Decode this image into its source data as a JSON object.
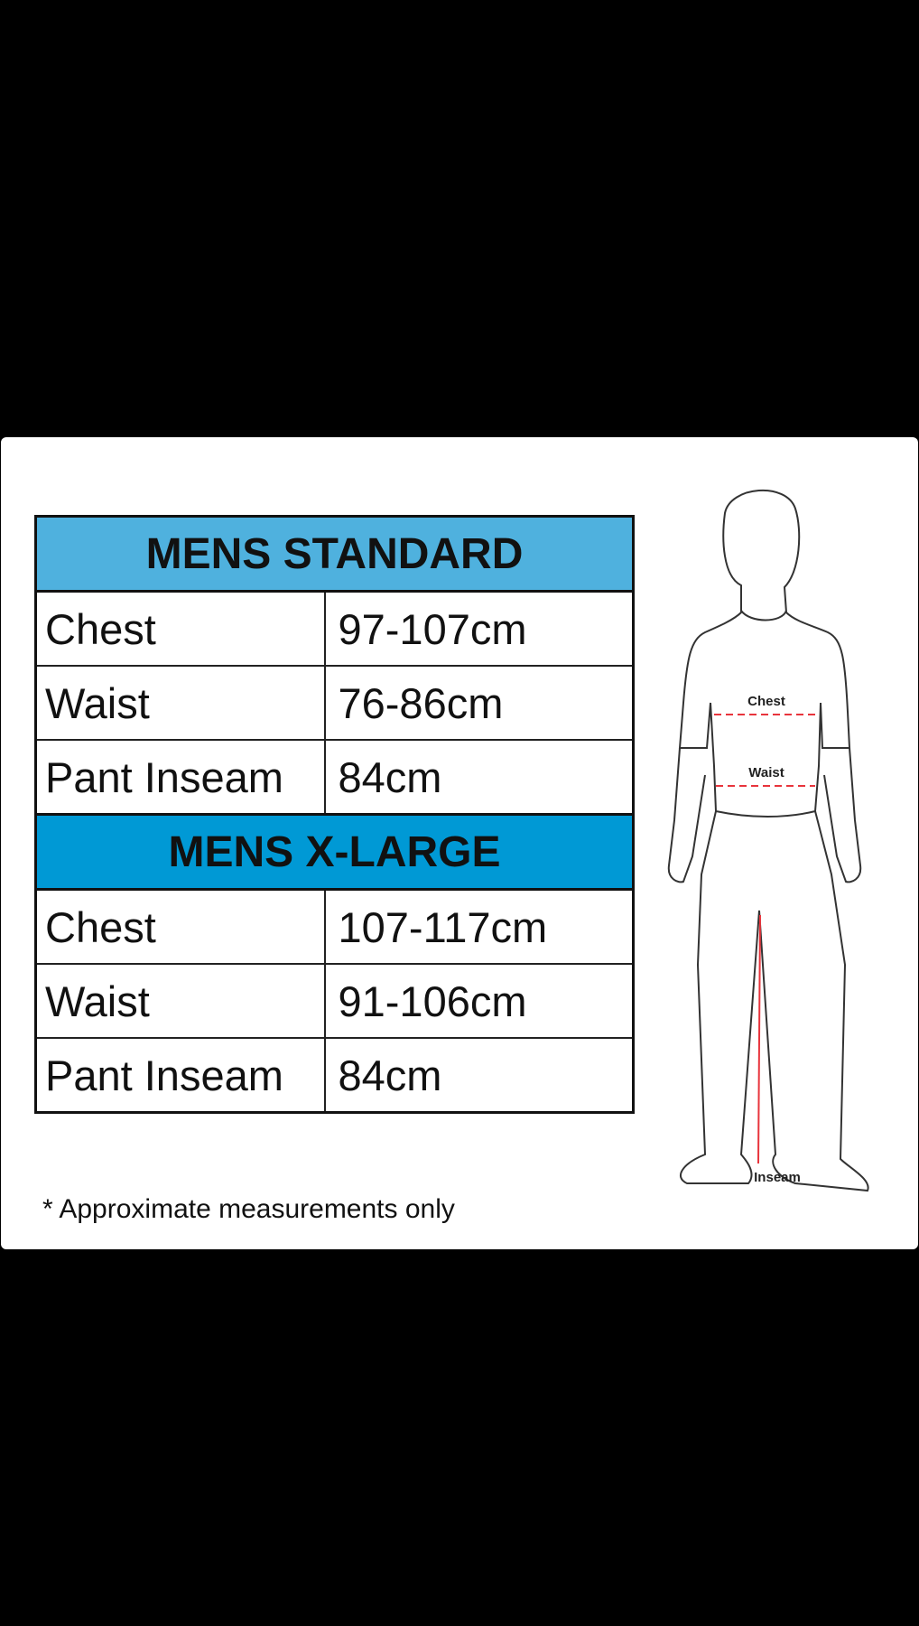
{
  "sections": [
    {
      "title": "MENS STANDARD",
      "header_color": "#4fb1de",
      "rows": [
        {
          "label": "Chest",
          "value": "97-107cm"
        },
        {
          "label": "Waist",
          "value": "76-86cm"
        },
        {
          "label": "Pant Inseam",
          "value": "84cm"
        }
      ]
    },
    {
      "title": "MENS X-LARGE",
      "header_color": "#0099d5",
      "rows": [
        {
          "label": "Chest",
          "value": "107-117cm"
        },
        {
          "label": "Waist",
          "value": "91-106cm"
        },
        {
          "label": "Pant Inseam",
          "value": "84cm"
        }
      ]
    }
  ],
  "footnote": "* Approximate measurements only",
  "figure": {
    "chest_label": "Chest",
    "waist_label": "Waist",
    "inseam_label": "Inseam",
    "measure_color": "#e8343c"
  }
}
